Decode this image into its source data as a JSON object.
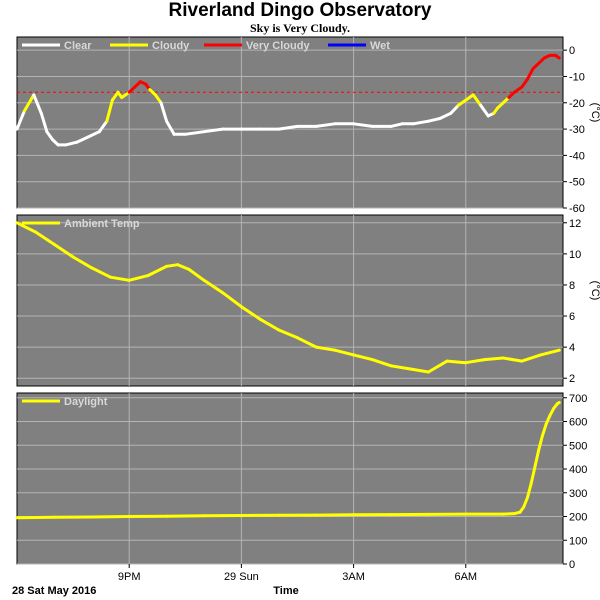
{
  "header": {
    "title": "Riverland Dingo Observatory",
    "subtitle": "Sky is Very Cloudy."
  },
  "footer": {
    "date_label": "28 Sat May 2016",
    "time_label": "Time"
  },
  "x_ticks": [
    "9PM",
    "29 Sun",
    "3AM",
    "6AM"
  ],
  "colors": {
    "panel_bg": "#808080",
    "grid": "#b4b4b4",
    "clear": "#ffffff",
    "cloudy": "#ffff00",
    "very_cloudy": "#ff0000",
    "wet": "#0000ff",
    "ambient": "#ffff00",
    "daylight": "#ffff00"
  },
  "chart_data": [
    {
      "type": "line",
      "name": "sky",
      "unit": "(°C)",
      "ylim": [
        -60,
        5
      ],
      "yticks": [
        0,
        -10,
        -20,
        -30,
        -40,
        -50,
        -60
      ],
      "threshold": -16,
      "legend": [
        {
          "label": "Clear",
          "color": "#ffffff"
        },
        {
          "label": "Cloudy",
          "color": "#ffff00"
        },
        {
          "label": "Very Cloudy",
          "color": "#ff0000"
        },
        {
          "label": "Wet",
          "color": "#0000ff"
        }
      ],
      "x_hours": [
        0,
        0.2,
        0.45,
        0.65,
        0.8,
        0.95,
        1.1,
        1.3,
        1.6,
        1.9,
        2.2,
        2.4,
        2.55,
        2.7,
        2.8,
        2.9,
        3.0,
        3.15,
        3.3,
        3.45,
        3.55,
        3.7,
        3.85,
        4.0,
        4.2,
        4.5,
        5.0,
        5.5,
        6.0,
        6.5,
        7.0,
        7.5,
        8.0,
        8.5,
        9.0,
        9.5,
        10.0,
        10.3,
        10.6,
        11.0,
        11.3,
        11.6,
        11.8,
        12.0,
        12.2,
        12.4,
        12.6,
        12.75,
        12.85,
        13.0,
        13.15,
        13.3,
        13.5,
        13.65,
        13.8,
        13.95,
        14.1,
        14.25,
        14.4,
        14.5
      ],
      "sky_temp": [
        -30,
        -23,
        -17,
        -24,
        -31,
        -34,
        -36,
        -36,
        -35,
        -33,
        -31,
        -27,
        -19,
        -16,
        -18,
        -17,
        -16,
        -14,
        -12,
        -13,
        -15,
        -17,
        -20,
        -27,
        -32,
        -32,
        -31,
        -30,
        -30,
        -30,
        -30,
        -29,
        -29,
        -28,
        -28,
        -29,
        -29,
        -28,
        -28,
        -27,
        -26,
        -24,
        -21,
        -19,
        -17,
        -21,
        -25,
        -24,
        -22,
        -20,
        -18,
        -16,
        -14,
        -11,
        -7,
        -5,
        -3,
        -2,
        -2,
        -3
      ],
      "conditions": [
        "clear",
        "clear",
        "cloudy",
        "clear",
        "clear",
        "clear",
        "clear",
        "clear",
        "clear",
        "clear",
        "clear",
        "clear",
        "cloudy",
        "cloudy",
        "cloudy",
        "cloudy",
        "cloudy",
        "very_cloudy",
        "very_cloudy",
        "very_cloudy",
        "very_cloudy",
        "cloudy",
        "cloudy",
        "clear",
        "clear",
        "clear",
        "clear",
        "clear",
        "clear",
        "clear",
        "clear",
        "clear",
        "clear",
        "clear",
        "clear",
        "clear",
        "clear",
        "clear",
        "clear",
        "clear",
        "clear",
        "clear",
        "clear",
        "cloudy",
        "cloudy",
        "cloudy",
        "clear",
        "clear",
        "cloudy",
        "cloudy",
        "cloudy",
        "very_cloudy",
        "very_cloudy",
        "very_cloudy",
        "very_cloudy",
        "very_cloudy",
        "very_cloudy",
        "very_cloudy",
        "very_cloudy",
        "very_cloudy"
      ]
    },
    {
      "type": "line",
      "name": "ambient",
      "unit": "(°C)",
      "ylim": [
        1.5,
        12.5
      ],
      "yticks": [
        12,
        10,
        8,
        6,
        4,
        2
      ],
      "legend": [
        {
          "label": "Ambient Temp",
          "color": "#ffff00"
        }
      ],
      "x_hours": [
        0,
        0.5,
        1.0,
        1.5,
        2.0,
        2.5,
        3.0,
        3.5,
        4.0,
        4.3,
        4.6,
        5.0,
        5.5,
        6.0,
        6.5,
        7.0,
        7.5,
        8.0,
        8.5,
        9.0,
        9.5,
        10.0,
        10.5,
        11.0,
        11.5,
        12.0,
        12.5,
        13.0,
        13.5,
        14.0,
        14.5
      ],
      "values": [
        12.0,
        11.4,
        10.6,
        9.8,
        9.1,
        8.5,
        8.3,
        8.6,
        9.2,
        9.3,
        9.0,
        8.3,
        7.5,
        6.6,
        5.8,
        5.1,
        4.6,
        4.0,
        3.8,
        3.5,
        3.2,
        2.8,
        2.6,
        2.4,
        3.1,
        3.0,
        3.2,
        3.3,
        3.1,
        3.5,
        3.8
      ]
    },
    {
      "type": "line",
      "name": "daylight",
      "unit": "",
      "ylim": [
        0,
        720
      ],
      "yticks": [
        700,
        600,
        500,
        400,
        300,
        200,
        100,
        0
      ],
      "legend": [
        {
          "label": "Daylight",
          "color": "#ffff00"
        }
      ],
      "x_hours": [
        0,
        1.0,
        2.0,
        3.0,
        4.0,
        5.0,
        6.0,
        7.0,
        8.0,
        9.0,
        10.0,
        11.0,
        12.0,
        13.0,
        13.3,
        13.45,
        13.55,
        13.65,
        13.75,
        13.85,
        13.95,
        14.05,
        14.15,
        14.25,
        14.35,
        14.45,
        14.5
      ],
      "values": [
        195,
        197,
        198,
        200,
        201,
        203,
        204,
        205,
        206,
        207,
        208,
        209,
        210,
        210,
        212,
        218,
        240,
        280,
        340,
        410,
        480,
        540,
        590,
        625,
        655,
        675,
        680
      ]
    }
  ]
}
